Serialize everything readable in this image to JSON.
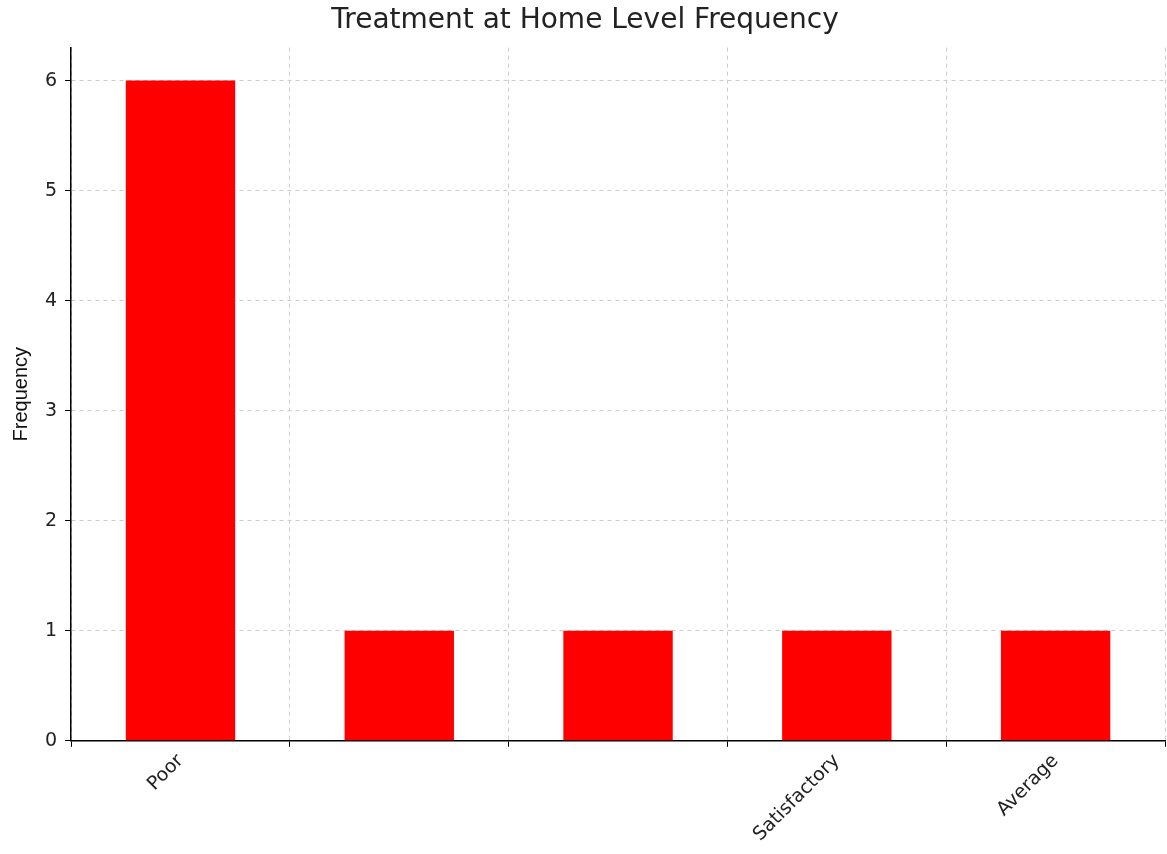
{
  "chart_data": {
    "type": "bar",
    "title": "Treatment at Home Level Frequency",
    "ylabel": "Frequency",
    "categories": [
      "Poor",
      null,
      null,
      "Satisfactory",
      "Average"
    ],
    "values": [
      6,
      1,
      1,
      1,
      1
    ],
    "color": "#ff0000",
    "ylim": [
      0,
      6.3
    ],
    "yticks": [
      0,
      1,
      2,
      3,
      4,
      5,
      6
    ],
    "grid": true
  }
}
